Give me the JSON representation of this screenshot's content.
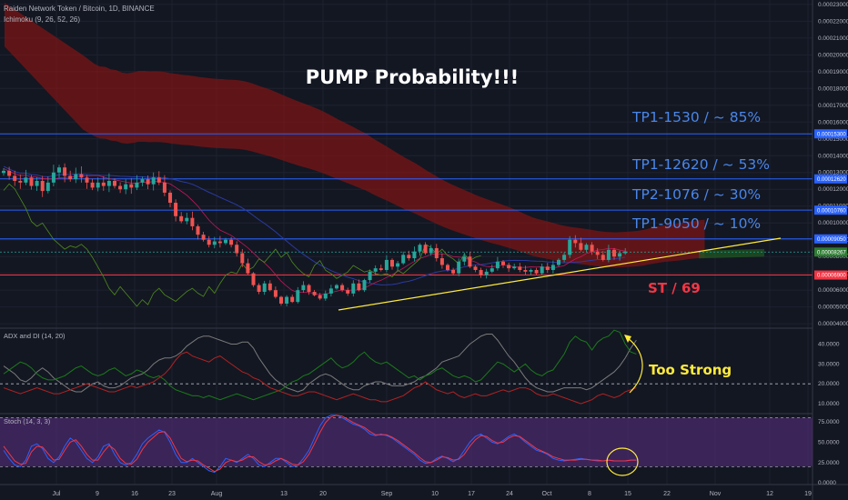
{
  "symbol_title": "Raiden Network Token / Bitcoin, 1D, BINANCE",
  "ichimoku_label": "Ichimoku (9, 26, 52, 26)",
  "adx_label": "ADX and DI (14, 20)",
  "stoch_label": "Stoch (14, 3, 3)",
  "annotations": {
    "headline": "PUMP Probability!!!",
    "tp_lines": [
      "TP1-1530 / ~ 85%",
      "TP1-12620 / ~ 53%",
      "TP2-1076 / ~ 30%",
      "TP1-9050 / ~ 10%"
    ],
    "stop": "ST / 69",
    "too_strong": "Too Strong"
  },
  "colors": {
    "background": "#131722",
    "cloud": "#7a1616",
    "candle_up": "#26a69a",
    "candle_down": "#ef5350",
    "trendline": "#ffeb3b",
    "level_line": "#2962ff",
    "stop_line": "#f23645",
    "tp_text": "#4a86e8",
    "stoch_bg": "#4a2a6b"
  },
  "chart_data": [
    {
      "type": "candlestick",
      "name": "price",
      "x_ticks": [
        "Jul",
        "9",
        "16",
        "23",
        "Aug",
        "13",
        "20",
        "Sep",
        "10",
        "17",
        "24",
        "Oct",
        "8",
        "15",
        "22",
        "Nov",
        "12",
        "19"
      ],
      "y_ticks": [
        "0.00023000",
        "0.00022000",
        "0.00021000",
        "0.00020000",
        "0.00019000",
        "0.00018000",
        "0.00017000",
        "0.00016000",
        "0.00015000",
        "0.00014000",
        "0.00013000",
        "0.00012000",
        "0.00011000",
        "0.00010000",
        "0.00009000",
        "0.00008000",
        "0.00007000",
        "0.00006000",
        "0.00005000",
        "0.00004000"
      ],
      "ylim": [
        3.9e-05,
        0.000231
      ],
      "level_lines": [
        {
          "value": "0.00015300",
          "kind": "target"
        },
        {
          "value": "0.00012620",
          "kind": "target"
        },
        {
          "value": "0.00010760",
          "kind": "target"
        },
        {
          "value": "0.00009050",
          "kind": "target"
        },
        {
          "value": "0.00008267",
          "kind": "current"
        },
        {
          "value": "0.00006900",
          "kind": "stop"
        }
      ],
      "close_series": [
        0.000131,
        0.000128,
        0.000125,
        0.000124,
        0.000127,
        0.000122,
        0.000125,
        0.000119,
        0.000124,
        0.00013,
        0.000133,
        0.000128,
        0.000126,
        0.000129,
        0.000127,
        0.000124,
        0.000121,
        0.000124,
        0.000122,
        0.000125,
        0.000122,
        0.00012,
        0.000123,
        0.000121,
        0.000124,
        0.000126,
        0.000123,
        0.000127,
        0.000124,
        0.000118,
        0.000112,
        0.000104,
        0.000101,
        0.000103,
        9.8e-05,
        9.3e-05,
        9e-05,
        8.7e-05,
        8.9e-05,
        8.8e-05,
        9e-05,
        8.7e-05,
        8.2e-05,
        7.6e-05,
        7e-05,
        6.3e-05,
        5.9e-05,
        6.4e-05,
        6e-05,
        5.6e-05,
        5.2e-05,
        5.6e-05,
        5.3e-05,
        6e-05,
        6.3e-05,
        5.9e-05,
        5.7e-05,
        5.5e-05,
        5.8e-05,
        6.1e-05,
        6.3e-05,
        6e-05,
        5.8e-05,
        6.4e-05,
        6e-05,
        6.6e-05,
        7.1e-05,
        7.3e-05,
        7.2e-05,
        7.8e-05,
        7.4e-05,
        7.6e-05,
        8.1e-05,
        7.9e-05,
        8.3e-05,
        8.7e-05,
        8.2e-05,
        8.5e-05,
        7.9e-05,
        7.5e-05,
        7.2e-05,
        7e-05,
        7.7e-05,
        8e-05,
        7.4e-05,
        7.2e-05,
        6.9e-05,
        7.1e-05,
        7.3e-05,
        7.7e-05,
        7.5e-05,
        7.3e-05,
        7.4e-05,
        7.2e-05,
        7.1e-05,
        7.2e-05,
        7e-05,
        7.4e-05,
        7.2e-05,
        7.5e-05,
        7.8e-05,
        8.1e-05,
        9e-05,
        8.8e-05,
        8.4e-05,
        8.7e-05,
        8.3e-05,
        8.1e-05,
        7.8e-05,
        8.4e-05,
        8e-05,
        8.2e-05,
        8.3e-05
      ]
    },
    {
      "type": "line",
      "name": "adx",
      "y_ticks": [
        "40.0000",
        "30.0000",
        "20.0000",
        "10.0000"
      ],
      "ylim": [
        5,
        48
      ],
      "threshold": 20,
      "series": [
        {
          "color": "#7a7a7a",
          "values": [
            29,
            27,
            25,
            22,
            21,
            23,
            26,
            28,
            26,
            23,
            21,
            19,
            17,
            16,
            16,
            18,
            20,
            21,
            19,
            18,
            18,
            19,
            21,
            23,
            24,
            25,
            27,
            30,
            32,
            33,
            33,
            34,
            36,
            39,
            41,
            43,
            44,
            44,
            43,
            42,
            41,
            40,
            40,
            41,
            41,
            38,
            33,
            29,
            25,
            22,
            20,
            18,
            17,
            16,
            17,
            20,
            22,
            24,
            25,
            24,
            22,
            20,
            18,
            17,
            17,
            19,
            20,
            21,
            21,
            20,
            19,
            19,
            19,
            20,
            21,
            23,
            24,
            26,
            28,
            31,
            32,
            33,
            34,
            37,
            40,
            42,
            44,
            45,
            45,
            42,
            38,
            34,
            31,
            27,
            23,
            20,
            18,
            17,
            16,
            16,
            17,
            18,
            18,
            18,
            18,
            17,
            18,
            20,
            22,
            24,
            26,
            29,
            33,
            38,
            42
          ]
        },
        {
          "color": "#1b7a1b",
          "values": [
            25,
            27,
            29,
            31,
            30,
            28,
            25,
            23,
            22,
            22,
            23,
            24,
            26,
            28,
            29,
            27,
            25,
            24,
            25,
            27,
            28,
            26,
            24,
            25,
            27,
            26,
            24,
            23,
            24,
            22,
            19,
            17,
            16,
            15,
            14,
            14,
            13,
            14,
            13,
            12,
            13,
            14,
            15,
            14,
            13,
            12,
            13,
            14,
            15,
            16,
            17,
            19,
            21,
            22,
            24,
            25,
            27,
            29,
            31,
            33,
            30,
            28,
            29,
            31,
            34,
            36,
            33,
            31,
            30,
            31,
            29,
            27,
            25,
            23,
            24,
            22,
            24,
            25,
            27,
            28,
            26,
            24,
            23,
            24,
            23,
            21,
            22,
            25,
            28,
            31,
            30,
            28,
            26,
            28,
            30,
            27,
            25,
            24,
            26,
            27,
            31,
            35,
            41,
            44,
            42,
            41,
            37,
            41,
            43,
            44,
            47,
            46,
            40,
            36,
            35
          ]
        },
        {
          "color": "#b22222",
          "values": [
            18,
            17,
            16,
            15,
            16,
            17,
            18,
            17,
            16,
            15,
            15,
            16,
            17,
            18,
            19,
            20,
            19,
            18,
            17,
            16,
            16,
            17,
            18,
            19,
            18,
            19,
            20,
            21,
            23,
            25,
            28,
            32,
            35,
            36,
            34,
            33,
            32,
            31,
            33,
            34,
            32,
            30,
            28,
            26,
            25,
            23,
            22,
            20,
            18,
            17,
            16,
            15,
            14,
            14,
            15,
            16,
            16,
            15,
            14,
            13,
            12,
            13,
            14,
            15,
            14,
            13,
            12,
            12,
            11,
            11,
            12,
            13,
            14,
            16,
            18,
            19,
            21,
            19,
            17,
            16,
            15,
            16,
            14,
            13,
            14,
            15,
            14,
            14,
            15,
            16,
            17,
            16,
            17,
            18,
            18,
            17,
            15,
            14,
            14,
            15,
            14,
            13,
            12,
            11,
            10,
            11,
            12,
            14,
            15,
            14,
            13,
            14,
            16,
            17,
            18
          ]
        }
      ]
    },
    {
      "type": "line",
      "name": "stoch",
      "y_ticks": [
        "75.0000",
        "50.0000",
        "25.0000",
        "0.0000"
      ],
      "ylim": [
        -2,
        85
      ],
      "band": [
        20,
        80
      ],
      "series": [
        {
          "color": "#2962ff",
          "values": [
            40,
            30,
            22,
            20,
            28,
            45,
            48,
            42,
            30,
            25,
            32,
            45,
            55,
            50,
            40,
            30,
            25,
            32,
            45,
            48,
            35,
            25,
            22,
            25,
            35,
            48,
            55,
            60,
            65,
            62,
            50,
            35,
            25,
            25,
            30,
            25,
            20,
            15,
            13,
            20,
            30,
            28,
            25,
            30,
            35,
            30,
            22,
            20,
            25,
            30,
            30,
            25,
            20,
            22,
            30,
            40,
            55,
            70,
            80,
            83,
            83,
            80,
            76,
            72,
            70,
            66,
            60,
            58,
            60,
            58,
            55,
            50,
            45,
            40,
            35,
            28,
            24,
            25,
            30,
            33,
            30,
            26,
            30,
            40,
            50,
            57,
            60,
            55,
            50,
            48,
            52,
            57,
            60,
            56,
            50,
            45,
            40,
            38,
            35,
            30,
            28,
            27,
            28,
            29,
            30,
            29,
            28,
            27,
            27,
            28,
            27,
            27,
            27,
            28,
            28
          ]
        },
        {
          "color": "#f23645",
          "values": [
            45,
            36,
            27,
            23,
            24,
            38,
            45,
            44,
            36,
            28,
            29,
            40,
            50,
            53,
            45,
            35,
            28,
            28,
            38,
            46,
            41,
            30,
            24,
            23,
            29,
            41,
            50,
            56,
            62,
            63,
            55,
            42,
            30,
            26,
            28,
            27,
            22,
            18,
            14,
            17,
            25,
            28,
            26,
            28,
            32,
            32,
            26,
            22,
            23,
            27,
            30,
            27,
            23,
            22,
            26,
            35,
            48,
            62,
            74,
            81,
            83,
            82,
            78,
            74,
            71,
            68,
            63,
            59,
            59,
            59,
            56,
            52,
            47,
            42,
            37,
            31,
            26,
            25,
            28,
            32,
            31,
            28,
            29,
            35,
            45,
            53,
            58,
            57,
            52,
            49,
            50,
            55,
            58,
            57,
            52,
            47,
            42,
            39,
            36,
            32,
            30,
            28,
            28,
            28,
            29,
            29,
            28,
            28,
            27,
            28,
            27,
            27,
            27,
            28,
            28
          ]
        }
      ]
    }
  ]
}
